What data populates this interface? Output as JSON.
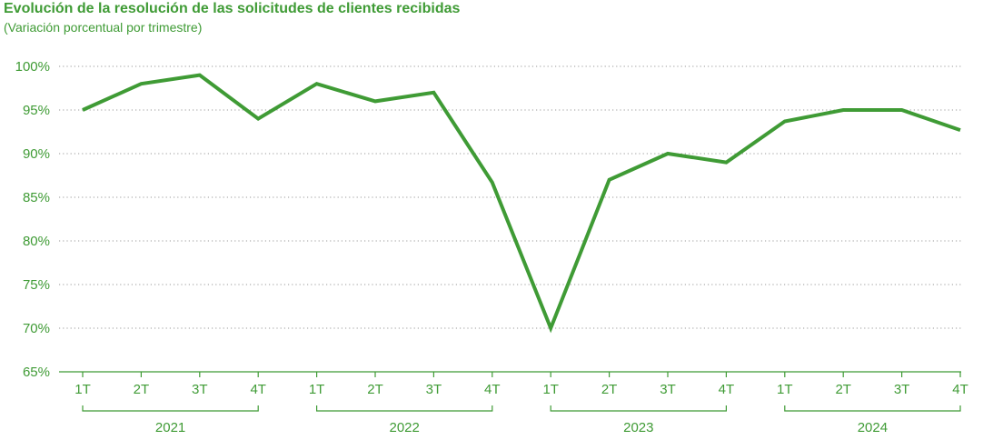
{
  "chart_data": {
    "type": "line",
    "title": "Evolución de la resolución de las solicitudes de clientes recibidas",
    "subtitle": "(Variación porcentual por trimestre)",
    "x": [
      "1T",
      "2T",
      "3T",
      "4T",
      "1T",
      "2T",
      "3T",
      "4T",
      "1T",
      "2T",
      "3T",
      "4T",
      "1T",
      "2T",
      "3T",
      "4T"
    ],
    "years": [
      "2021",
      "2022",
      "2023",
      "2024"
    ],
    "series": [
      {
        "values": [
          95,
          98,
          99,
          94,
          98,
          96,
          97,
          86.7,
          70,
          87,
          90,
          89,
          93.7,
          95,
          95,
          92.7
        ]
      }
    ],
    "yticks": [
      "100%",
      "95%",
      "90%",
      "85%",
      "80%",
      "75%",
      "70%",
      "65%"
    ],
    "ylim": [
      65,
      100
    ],
    "grid": "horizontal dotted",
    "color": "#3f9b35"
  }
}
